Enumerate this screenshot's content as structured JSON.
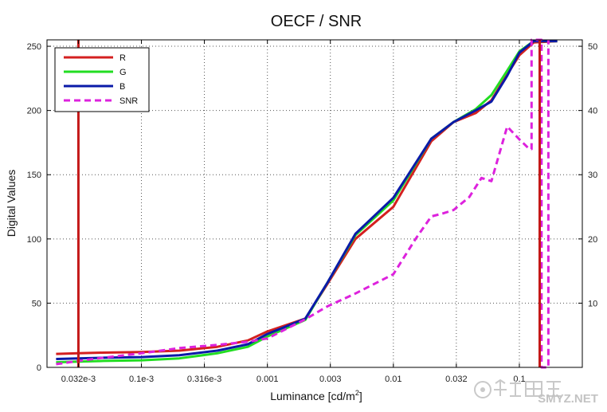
{
  "chart_data": {
    "type": "line",
    "title": "OECF / SNR",
    "xlabel": "Luminance [cd/m",
    "xlabel_sup": "2",
    "xlabel_end": "]",
    "ylabel": "Digital Values",
    "x_scale": "log",
    "xlim": [
      1.78e-05,
      0.316
    ],
    "ylim": [
      0,
      255
    ],
    "y2lim": [
      0,
      51
    ],
    "x_ticks": [
      {
        "value": 3.16e-05,
        "label": "0.032e-3"
      },
      {
        "value": 0.0001,
        "label": "0.1e-3"
      },
      {
        "value": 0.000316,
        "label": "0.316e-3"
      },
      {
        "value": 0.001,
        "label": "0.001"
      },
      {
        "value": 0.00316,
        "label": "0.003"
      },
      {
        "value": 0.01,
        "label": "0.01"
      },
      {
        "value": 0.0316,
        "label": "0.032"
      },
      {
        "value": 0.1,
        "label": "0.1"
      }
    ],
    "y_ticks": [
      0,
      50,
      100,
      150,
      200,
      250
    ],
    "y2_ticks": [
      10,
      20,
      30,
      40,
      50
    ],
    "grid": true,
    "legend_position": "top-left",
    "series": [
      {
        "name": "R",
        "color": "#d42020",
        "dash": false,
        "x": [
          2.1e-05,
          3.16e-05,
          5e-05,
          0.0001,
          0.0002,
          0.0004,
          0.0007,
          0.001,
          0.002,
          0.003,
          0.005,
          0.01,
          0.02,
          0.03,
          0.045,
          0.06,
          0.08,
          0.1,
          0.13,
          0.2
        ],
        "y": [
          10.5,
          11,
          11.5,
          12,
          13,
          16,
          21,
          28,
          38,
          65,
          100,
          125,
          176,
          191,
          198,
          208,
          228,
          243,
          253,
          254
        ]
      },
      {
        "name": "G",
        "color": "#22dd22",
        "dash": false,
        "x": [
          2.1e-05,
          3.16e-05,
          5e-05,
          0.0001,
          0.0002,
          0.0004,
          0.0007,
          0.001,
          0.002,
          0.003,
          0.005,
          0.01,
          0.02,
          0.03,
          0.045,
          0.06,
          0.08,
          0.1,
          0.13,
          0.2
        ],
        "y": [
          4,
          4.5,
          5,
          5.5,
          7,
          11,
          16,
          24,
          37,
          66,
          103,
          130,
          178,
          191,
          201,
          212,
          231,
          246,
          254,
          254
        ]
      },
      {
        "name": "B",
        "color": "#0a1aa8",
        "dash": false,
        "x": [
          2.1e-05,
          3.16e-05,
          5e-05,
          0.0001,
          0.0002,
          0.0004,
          0.0007,
          0.001,
          0.002,
          0.003,
          0.005,
          0.01,
          0.02,
          0.03,
          0.045,
          0.06,
          0.08,
          0.1,
          0.13,
          0.2
        ],
        "y": [
          6.5,
          7,
          7.5,
          8,
          9.5,
          13,
          18,
          26,
          38,
          66,
          104,
          132,
          178,
          191,
          200,
          207,
          227,
          245,
          254,
          254
        ]
      },
      {
        "name": "SNR",
        "color": "#dd22dd",
        "dash": true,
        "axis": "right",
        "x": [
          2.1e-05,
          3.16e-05,
          5e-05,
          0.0001,
          0.0002,
          0.0004,
          0.0007,
          0.001,
          0.002,
          0.003,
          0.005,
          0.01,
          0.015,
          0.02,
          0.025,
          0.03,
          0.04,
          0.05,
          0.06,
          0.08,
          0.1,
          0.12,
          0.125,
          0.125,
          0.14,
          0.15,
          0.15,
          0.165,
          0.17,
          0.17
        ],
        "y": [
          0.5,
          1,
          1.5,
          2.2,
          3,
          3.5,
          4,
          4.5,
          7.5,
          9.5,
          11.5,
          14.5,
          20,
          23.5,
          24,
          24.5,
          26.5,
          29.5,
          29,
          37.5,
          35.5,
          34,
          34,
          51,
          51,
          51,
          0,
          0,
          0,
          51
        ]
      }
    ],
    "threshold_lines": [
      {
        "x": 3.16e-05,
        "color": "#c41818"
      },
      {
        "x": 0.145,
        "color": "#c41818"
      }
    ]
  },
  "watermark": {
    "text": "SMYZ.NET",
    "icon": "watermark-logo-icon"
  }
}
